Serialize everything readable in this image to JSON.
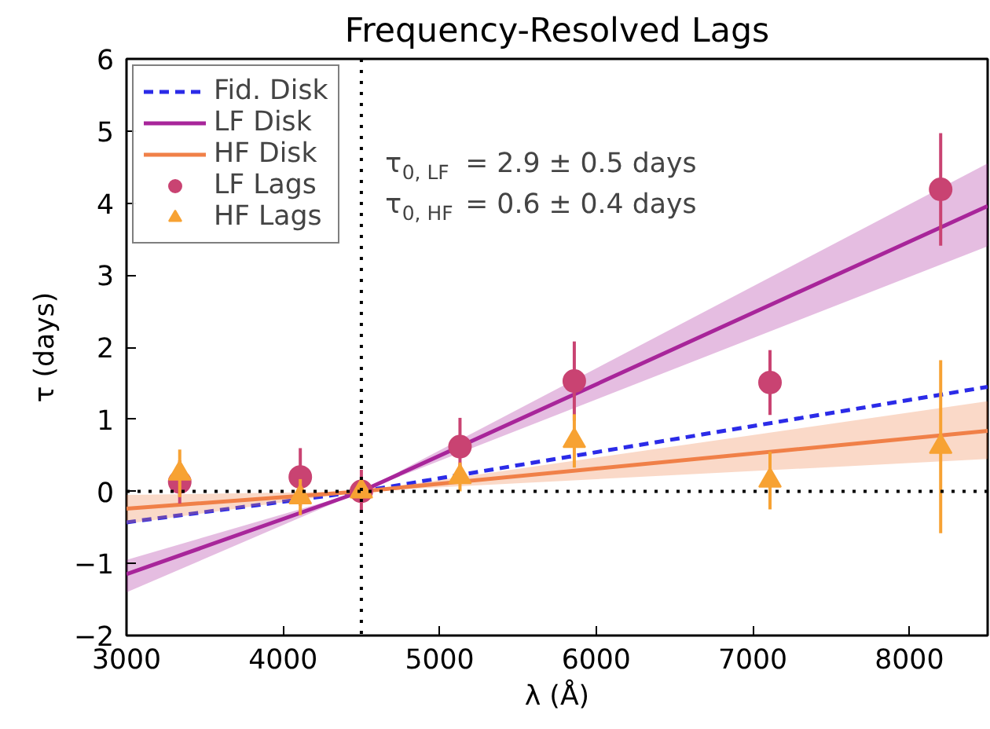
{
  "chart_data": {
    "type": "scatter",
    "title": "Frequency-Resolved Lags",
    "xlabel": "λ (Å)",
    "ylabel": "τ (days)",
    "xlim": [
      3000,
      8500
    ],
    "ylim": [
      -2,
      6
    ],
    "xticks": [
      3000,
      4000,
      5000,
      6000,
      7000,
      8000
    ],
    "yticks": [
      -2,
      -1,
      0,
      1,
      2,
      3,
      4,
      5,
      6
    ],
    "grid": false,
    "legend": "top left",
    "annotations": [
      "τ$_{0, LF}$ = 2.9 ± 0.5 days",
      "τ$_{0, HF}$ = 0.6 ± 0.4 days"
    ],
    "ref_lines": [
      {
        "axis": "y",
        "value": 0,
        "label": null,
        "color": "#000000",
        "line_style": "dotted"
      },
      {
        "axis": "x",
        "value": 4500,
        "label": null,
        "color": "#000000",
        "line_style": "dotted"
      }
    ],
    "series": [
      {
        "name": "Fid. Disk",
        "type": "line",
        "line_style": "dashed",
        "color": "#2b2be8",
        "x": [
          3000,
          4500,
          8500
        ],
        "values": [
          -0.43,
          0,
          1.45
        ]
      },
      {
        "name": "LF Disk",
        "type": "line",
        "line_style": "solid",
        "color": "#a8259a",
        "x": [
          3000,
          4500,
          8500
        ],
        "values": [
          -1.15,
          0,
          3.96
        ],
        "lower": [
          -1.4,
          0,
          3.4
        ],
        "upper": [
          -0.95,
          0,
          4.55
        ]
      },
      {
        "name": "HF Disk",
        "type": "line",
        "line_style": "solid",
        "color": "#f08048",
        "x": [
          3000,
          4500,
          8500
        ],
        "values": [
          -0.24,
          0,
          0.84
        ],
        "lower": [
          -0.45,
          0,
          0.45
        ],
        "upper": [
          -0.05,
          0,
          1.25
        ]
      },
      {
        "name": "LF Lags",
        "marker": "circle",
        "color": "#c94372",
        "x": [
          3340,
          4110,
          4500,
          5130,
          5860,
          7110,
          8200
        ],
        "values": [
          0.13,
          0.2,
          0,
          0.62,
          1.53,
          1.51,
          4.19
        ],
        "errors": [
          0.3,
          0.4,
          0.3,
          0.4,
          0.55,
          0.45,
          0.78
        ]
      },
      {
        "name": "HF Lags",
        "marker": "triangle",
        "color": "#f7a233",
        "x": [
          3340,
          4110,
          4500,
          5130,
          5860,
          7110,
          8200
        ],
        "values": [
          0.25,
          -0.08,
          0,
          0.2,
          0.7,
          0.15,
          0.62
        ],
        "errors": [
          0.33,
          0.25,
          0.1,
          0.2,
          0.37,
          0.4,
          1.2
        ]
      }
    ]
  }
}
